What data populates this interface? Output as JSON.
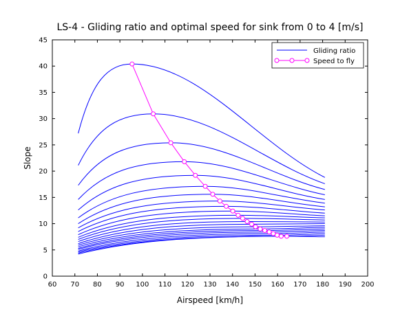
{
  "chart_data": {
    "type": "line",
    "title": "LS-4 - Gliding ratio and optimal speed for sink from 0 to 4 [m/s]",
    "xlabel": "Airspeed [km/h]",
    "ylabel": "Slope",
    "xlim": [
      60,
      200
    ],
    "ylim": [
      0,
      45
    ],
    "xticks": [
      60,
      70,
      80,
      90,
      100,
      110,
      120,
      130,
      140,
      150,
      160,
      170,
      180,
      190,
      200
    ],
    "yticks": [
      0,
      5,
      10,
      15,
      20,
      25,
      30,
      35,
      40,
      45
    ],
    "grid": false,
    "legend": {
      "placement": "top-right",
      "entries": [
        {
          "label": "Gliding ratio",
          "color": "#0000ff",
          "marker": "none"
        },
        {
          "label": "Speed to fly",
          "color": "#ff00ff",
          "marker": "circle"
        }
      ]
    },
    "gliding_ratio_curves": {
      "color": "#0000ff",
      "x_start": 71.5,
      "x_end": 181,
      "peaks_x": [
        95.4,
        104.8,
        112.6,
        118.6,
        123.5,
        127.9,
        131.2,
        134.4,
        137.2,
        140.1,
        142.5,
        144.5,
        146.5,
        148.5,
        150.2,
        152.3,
        154.3,
        156.3,
        158.1,
        159.8,
        161.6,
        164.1
      ],
      "peaks_y": [
        40.4,
        30.9,
        25.4,
        21.8,
        19.2,
        17.1,
        15.6,
        14.3,
        13.3,
        12.4,
        11.6,
        11.0,
        10.4,
        9.9,
        9.4,
        9.0,
        8.7,
        8.4,
        8.1,
        7.8,
        7.6,
        7.6
      ],
      "start_y": [
        27.2,
        21.1,
        17.3,
        14.6,
        12.6,
        11.1,
        10.0,
        9.2,
        8.5,
        7.9,
        7.4,
        7.0,
        6.6,
        6.2,
        5.9,
        5.6,
        5.3,
        5.1,
        4.8,
        4.6,
        4.4,
        4.2
      ],
      "end_y": [
        18.8,
        17.6,
        16.5,
        15.5,
        14.6,
        13.9,
        13.2,
        12.6,
        12.0,
        11.5,
        11.1,
        10.7,
        10.3,
        10.0,
        9.6,
        9.3,
        9.0,
        8.7,
        8.4,
        8.1,
        7.8,
        7.5
      ]
    },
    "speed_to_fly": {
      "color": "#ff00ff",
      "x": [
        95.4,
        104.8,
        112.6,
        118.6,
        123.5,
        127.9,
        131.2,
        134.4,
        137.2,
        140.1,
        142.5,
        144.5,
        146.5,
        148.5,
        150.2,
        152.3,
        154.3,
        156.3,
        158.1,
        159.8,
        161.6,
        164.1
      ],
      "y": [
        40.4,
        30.9,
        25.4,
        21.8,
        19.2,
        17.1,
        15.6,
        14.3,
        13.3,
        12.4,
        11.6,
        11.0,
        10.4,
        9.9,
        9.4,
        9.0,
        8.7,
        8.4,
        8.1,
        7.8,
        7.6,
        7.6
      ]
    }
  }
}
